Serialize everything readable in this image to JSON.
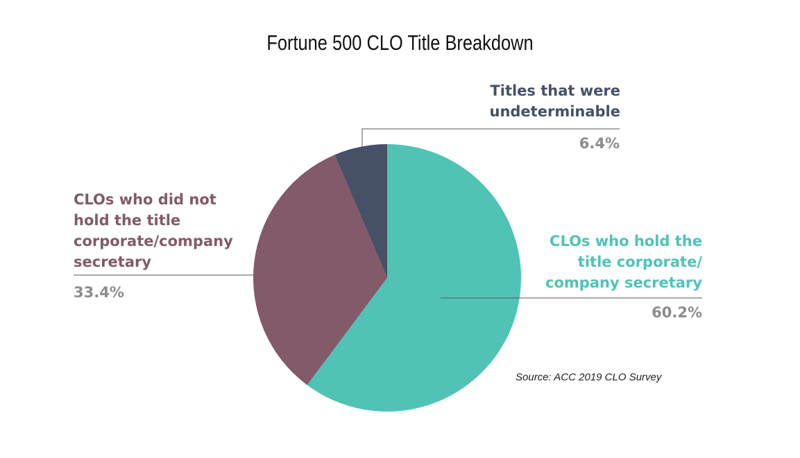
{
  "chart_data": {
    "type": "pie",
    "title": "Fortune 500 CLO Title Breakdown",
    "slices": [
      {
        "label": "CLOs who hold the title corporate/ company secretary",
        "value": 60.2,
        "value_label": "60.2%",
        "color": "#50C2B6"
      },
      {
        "label": "CLOs who did not hold the title corporate/company secretary",
        "value": 33.4,
        "value_label": "33.4%",
        "color": "#825A69"
      },
      {
        "label": "Titles that were undeterminable",
        "value": 6.4,
        "value_label": "6.4%",
        "color": "#465066"
      }
    ],
    "start_angle": "12 o'clock",
    "direction": "clockwise",
    "source": "Source: ACC 2019 CLO Survey"
  }
}
